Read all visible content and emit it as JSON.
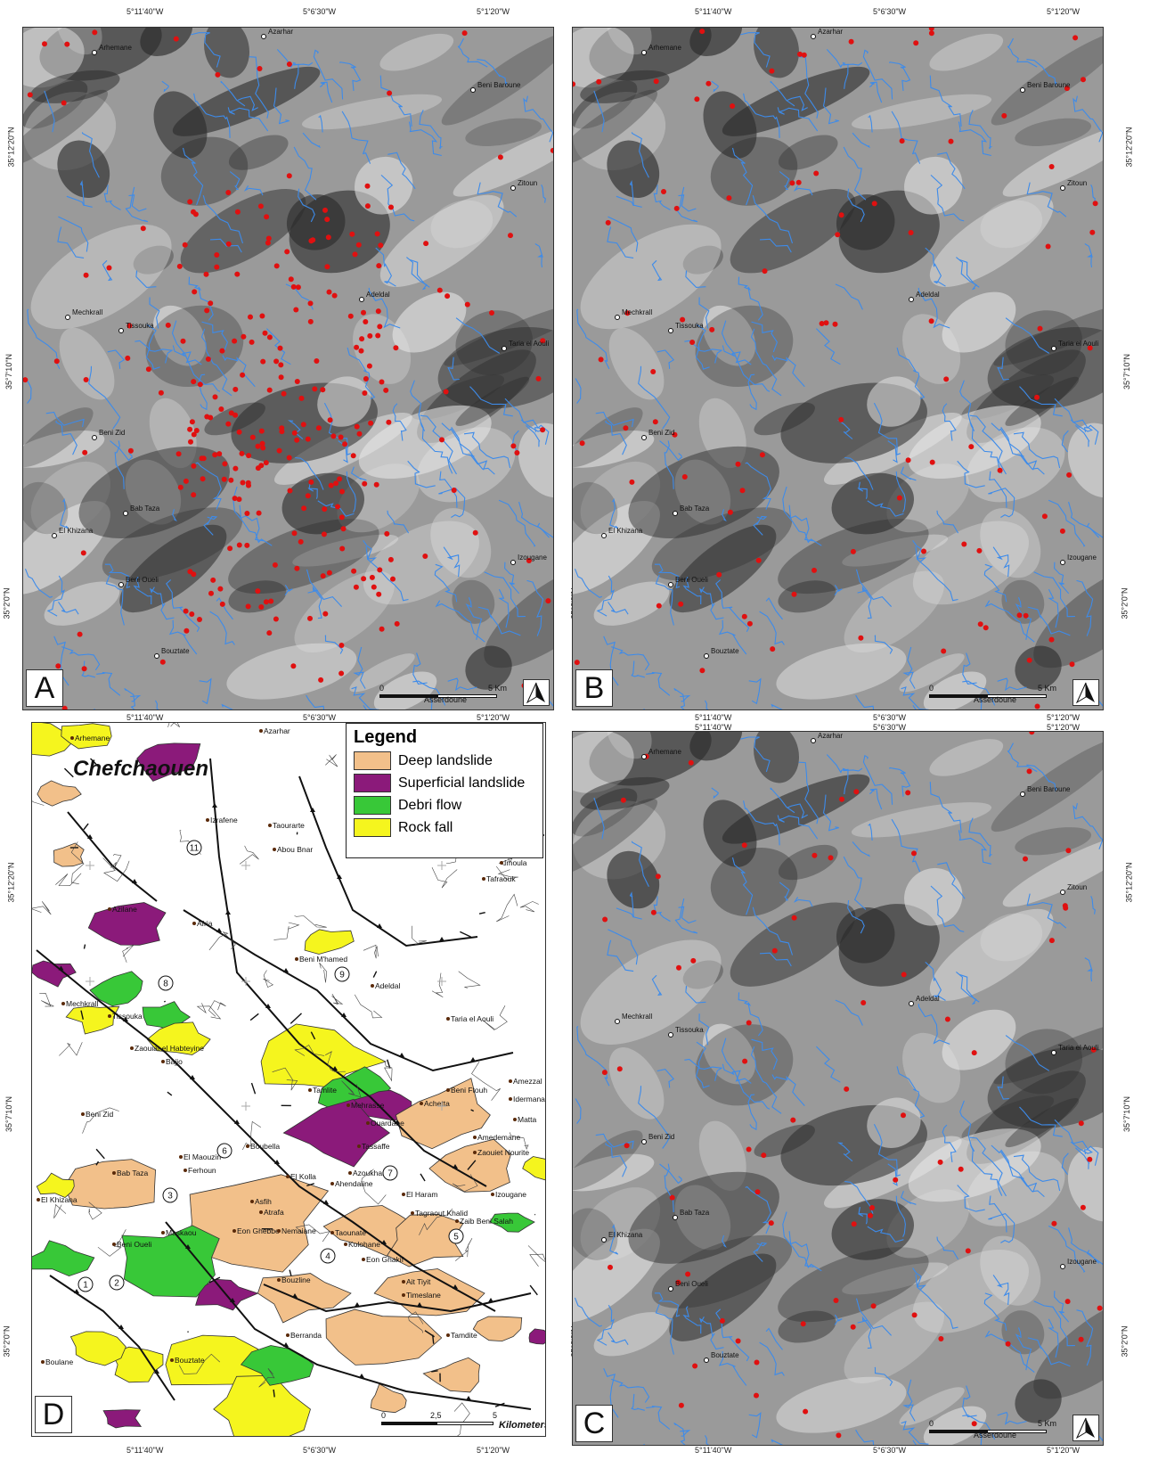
{
  "coordinates": {
    "top_lon": [
      "5°11'40\"W",
      "5°6'30\"W",
      "5°1'20\"W"
    ],
    "lat_labels": [
      "35°12'20\"N",
      "35°7'10\"N",
      "35°2'0\"N"
    ],
    "bottom_lon": [
      "5°11'40\"W",
      "5°6'30\"W",
      "5°1'20\"W"
    ]
  },
  "panels": {
    "A": {
      "label": "A"
    },
    "B": {
      "label": "B"
    },
    "C": {
      "label": "C"
    },
    "D": {
      "label": "D"
    }
  },
  "scale": {
    "start": "0",
    "end": "5 Km",
    "town": "Asserdoune"
  },
  "scale_d": {
    "start": "0",
    "mid": "2,5",
    "end": "5",
    "unit": "Kilometers"
  },
  "towns": [
    "Azarhar",
    "Arhemane",
    "Beni Baroune",
    "Zitoun",
    "Adeldal",
    "Mechkrall",
    "Tissouka",
    "Taria el Aouli",
    "Beni Zid",
    "Bab Taza",
    "El Khizana",
    "Izougane",
    "Beni Oueli",
    "Bouztate"
  ],
  "legend": {
    "title": "Legend",
    "items": [
      {
        "label": "Deep landslide",
        "color": "#f2c08a"
      },
      {
        "label": "Superficial landslide",
        "color": "#8b1a7a"
      },
      {
        "label": "Debri flow",
        "color": "#38c838"
      },
      {
        "label": "Rock fall",
        "color": "#f5f51e"
      }
    ]
  },
  "map_d": {
    "title": "Chefchaouen",
    "places": [
      "Azarhar",
      "Arhemane",
      "Taourarte",
      "Izrafene",
      "Abou Bnar",
      "Khmalsa",
      "Azrout",
      "Zaitouna",
      "Imoula",
      "Tafraouk",
      "Azilane",
      "Afria",
      "Beni M'hamed",
      "Adeldal",
      "Mechkrall",
      "Tissouka",
      "Taria el Aouli",
      "Zaouiat el Habteyine",
      "Bajjo",
      "Tamlite",
      "Beni Ftouh",
      "Amezzal",
      "Idermanane",
      "Achetta",
      "Beni Zid",
      "Mehrasse",
      "Ouardane",
      "Matta",
      "Amedemane",
      "Boubella",
      "Tassaffe",
      "Zaouiet Nourite",
      "El Maouzin",
      "Ferhoun",
      "Bab Taza",
      "Azoukhane",
      "El Kolla",
      "Ahendaline",
      "El Haram",
      "Izougane",
      "El Khizana",
      "Asfih",
      "Atrafa",
      "Tagraout Khalid",
      "Zaib Beni Salah",
      "Maskaou",
      "Eon Ghebbe",
      "Nemaiane",
      "Taounate",
      "Kolohane",
      "Beni Oueli",
      "Eon Ghakif",
      "Bouzline",
      "Ait Tiyit",
      "Timeslane",
      "Berranda",
      "Tamdite",
      "Bouztate",
      "Boulane"
    ],
    "fault_numbers": [
      "1",
      "2",
      "3",
      "4",
      "5",
      "6",
      "7",
      "8",
      "9",
      "11"
    ]
  },
  "colors": {
    "river": "#3d8bea",
    "point": "#e01010",
    "deep": "#f2c08a",
    "superficial": "#8b1a7a",
    "debri": "#38c838",
    "rockfall": "#f5f51e"
  }
}
